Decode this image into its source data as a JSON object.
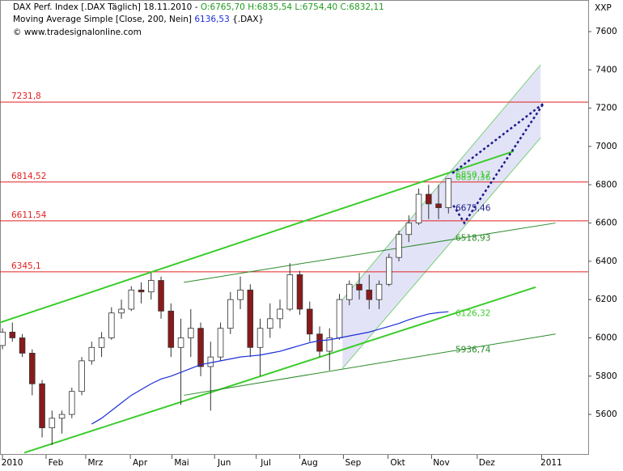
{
  "chart_data": {
    "type": "candlestick",
    "title": "DAX Perf. Index [.DAX  Täglich] 18.11.2010 -",
    "ohlc_text": "O:6765,70 H:6835,54 L:6754,40 C:6832,11",
    "indicator": "Moving Average Simple [Close, 200, Nein]",
    "indicator_value": "6136,53",
    "indicator_symbol": "{.DAX}",
    "source": "© www.tradesignalonline.com",
    "unit": "XXP",
    "xlim": [
      -0.25,
      59.1
    ],
    "ylim": [
      5389,
      7765
    ],
    "yticks": [
      5600,
      5800,
      6000,
      6200,
      6400,
      6600,
      6800,
      7000,
      7200,
      7400,
      7600
    ],
    "xticks": [
      {
        "value": 0,
        "label": "2010"
      },
      {
        "value": 4.4,
        "label": "Feb"
      },
      {
        "value": 8.4,
        "label": "Mrz"
      },
      {
        "value": 12.9,
        "label": "Apr"
      },
      {
        "value": 17.1,
        "label": "Mai"
      },
      {
        "value": 21.4,
        "label": "Jun"
      },
      {
        "value": 25.6,
        "label": "Jul"
      },
      {
        "value": 30,
        "label": "Aug"
      },
      {
        "value": 34.4,
        "label": "Sep"
      },
      {
        "value": 38.9,
        "label": "Okt"
      },
      {
        "value": 43.3,
        "label": "Nov"
      },
      {
        "value": 47.9,
        "label": "Dez"
      },
      {
        "value": 54.4,
        "label": "2011"
      }
    ],
    "open": [
      5960,
      6030,
      6000,
      5920,
      5760,
      5530,
      5580,
      5600,
      5720,
      5880,
      5950,
      6000,
      6130,
      6150,
      6250,
      6240,
      6300,
      6140,
      5950,
      6000,
      6050,
      5850,
      5900,
      6050,
      6200,
      6250,
      5950,
      6050,
      6100,
      6150,
      6330,
      6150,
      6020,
      5930,
      6000,
      6200,
      6280,
      6250,
      6200,
      6280,
      6420,
      6540,
      6600,
      6750,
      6700,
      6680
    ],
    "high": [
      6050,
      6080,
      6020,
      5940,
      5780,
      5620,
      5620,
      5740,
      5900,
      5980,
      6030,
      6160,
      6200,
      6270,
      6290,
      6340,
      6320,
      6180,
      6100,
      6150,
      6080,
      5980,
      6080,
      6240,
      6320,
      6280,
      6100,
      6180,
      6200,
      6390,
      6350,
      6190,
      6060,
      6050,
      6230,
      6300,
      6340,
      6330,
      6300,
      6440,
      6560,
      6640,
      6780,
      6800,
      6800,
      6835
    ],
    "low": [
      5940,
      5980,
      5900,
      5700,
      5480,
      5440,
      5500,
      5580,
      5700,
      5860,
      5900,
      5990,
      6100,
      6140,
      6180,
      6200,
      6100,
      5900,
      5650,
      5900,
      5800,
      5620,
      5880,
      6020,
      6150,
      5900,
      5800,
      6000,
      6050,
      6140,
      6120,
      5980,
      5900,
      5830,
      5990,
      6170,
      6200,
      6150,
      6150,
      6270,
      6400,
      6500,
      6590,
      6620,
      6620,
      6650
    ],
    "close": [
      6030,
      6000,
      5920,
      5760,
      5530,
      5580,
      5600,
      5720,
      5880,
      5950,
      6000,
      6130,
      6150,
      6250,
      6240,
      6300,
      6140,
      5950,
      6000,
      6050,
      5850,
      5900,
      6050,
      6200,
      6250,
      5950,
      6050,
      6100,
      6150,
      6330,
      6150,
      6020,
      5930,
      6000,
      6200,
      6280,
      6250,
      6200,
      6280,
      6420,
      6540,
      6600,
      6750,
      6700,
      6680,
      6832
    ],
    "up_color": "#ffffff",
    "down_color": "#8b1a1a",
    "moving_average": {
      "color": "#1c2fd6",
      "values": [
        null,
        null,
        null,
        null,
        null,
        null,
        null,
        null,
        null,
        5550,
        5580,
        5620,
        5660,
        5700,
        5730,
        5760,
        5785,
        5800,
        5820,
        5840,
        5860,
        5870,
        5880,
        5890,
        5900,
        5905,
        5910,
        5920,
        5930,
        5945,
        5960,
        5975,
        5985,
        5990,
        6000,
        6010,
        6020,
        6030,
        6045,
        6060,
        6075,
        6095,
        6110,
        6125,
        6132,
        6136.53
      ]
    },
    "hlines": [
      {
        "value": 7231.8,
        "label": "7231,8"
      },
      {
        "value": 6814.52,
        "label": "6814,52"
      },
      {
        "value": 6611.54,
        "label": "6611,54"
      },
      {
        "value": 6345.1,
        "label": "6345,1"
      }
    ],
    "hline_color": "#e02020",
    "channel": {
      "color": "#7ad07a",
      "fill": "#dcdcf5",
      "upper": [
        [
          34.3,
          6200
        ],
        [
          54.3,
          7427
        ]
      ],
      "lower": [
        [
          34.3,
          5840
        ],
        [
          54.3,
          7045
        ]
      ]
    },
    "trendlines": [
      {
        "color": "#3ccc2c",
        "width": 2,
        "from": [
          -0.25,
          6080
        ],
        "to": [
          51.6,
          6975
        ]
      },
      {
        "color": "#3ccc2c",
        "width": 2,
        "from": [
          2.2,
          5400
        ],
        "to": [
          53.8,
          6265
        ]
      },
      {
        "color": "#2a8a2a",
        "width": 1,
        "from": [
          18.3,
          6290
        ],
        "to": [
          55.8,
          6600
        ]
      },
      {
        "color": "#2a8a2a",
        "width": 1,
        "from": [
          18.3,
          5700
        ],
        "to": [
          55.8,
          6020
        ]
      }
    ],
    "projection": {
      "color": "#1a1a8a",
      "points": [
        [
          45.4,
          6860
        ],
        [
          54.6,
          7225
        ],
        [
          46.6,
          6600
        ],
        [
          45.4,
          6700
        ]
      ]
    },
    "annotations": [
      {
        "value": 6850.17,
        "label": "6850,17",
        "color": "#3ccc2c"
      },
      {
        "value": 6837.36,
        "label": "6837,36",
        "color": "#3ccc2c"
      },
      {
        "value": 6675.46,
        "label": "6675,46",
        "color": "#1a1a8a"
      },
      {
        "value": 6518.93,
        "label": "6518,93",
        "color": "#2a8a2a"
      },
      {
        "value": 6126.32,
        "label": "6126,32",
        "color": "#3ccc2c"
      },
      {
        "value": 5936.74,
        "label": "5936,74",
        "color": "#2a8a2a"
      }
    ]
  }
}
